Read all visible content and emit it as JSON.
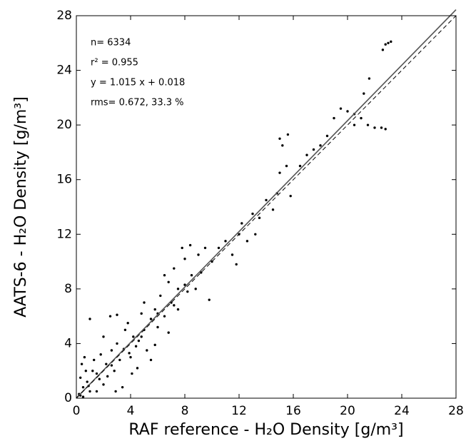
{
  "chart_data": {
    "type": "scatter",
    "x_label": "RAF reference - H₂O Density [g/m³]",
    "y_label": "AATS-6 - H₂O Density [g/m³]",
    "annotations": [
      "n= 6334",
      "r² = 0.955",
      "y = 1.015 x + 0.018",
      "rms= 0.672, 33.3 %"
    ],
    "xlim": [
      0,
      28
    ],
    "ylim": [
      0,
      28
    ],
    "xticks": [
      0,
      4,
      8,
      12,
      16,
      20,
      24,
      28
    ],
    "yticks": [
      0,
      4,
      8,
      12,
      16,
      20,
      24,
      28
    ],
    "color": "#000000",
    "x": [
      0.2,
      0.3,
      0.4,
      0.5,
      0.6,
      0.8,
      1.0,
      1.2,
      1.0,
      1.5,
      1.8,
      2.0,
      2.2,
      2.5,
      2.6,
      2.8,
      3.0,
      3.2,
      3.5,
      3.0,
      3.8,
      4.0,
      4.2,
      4.5,
      4.6,
      4.8,
      5.0,
      5.2,
      5.5,
      5.8,
      6.0,
      6.2,
      6.5,
      6.8,
      7.0,
      7.2,
      7.5,
      7.8,
      8.0,
      8.2,
      8.5,
      8.8,
      9.0,
      9.2,
      9.5,
      10.0,
      10.5,
      11.0,
      11.5,
      12.0,
      12.2,
      12.6,
      13.0,
      13.5,
      14.0,
      14.5,
      14.8,
      15.0,
      15.2,
      15.0,
      15.5,
      15.8,
      15.6,
      16.5,
      17.0,
      17.5,
      18.0,
      18.5,
      19.0,
      19.5,
      20.0,
      20.5,
      21.0,
      21.5,
      22.0,
      22.5,
      22.8,
      21.2,
      21.6,
      22.6,
      22.8,
      23.0,
      23.2,
      20.5,
      4.1,
      3.4,
      1.5,
      0.5,
      2.0,
      5.5,
      6.5,
      7.5,
      5.0,
      3.6,
      1.3,
      0.7,
      2.3,
      4.4,
      8.4,
      9.8,
      11.8,
      13.2,
      6.8,
      5.8,
      2.9,
      4.8,
      3.9,
      1.7,
      7.2,
      8.0,
      6.0,
      2.6,
      0.9,
      0.3
    ],
    "values": [
      0.3,
      1.5,
      2.5,
      0.8,
      3.0,
      1.2,
      5.8,
      2.0,
      0.5,
      1.8,
      3.2,
      1.0,
      2.5,
      6.0,
      3.5,
      2.0,
      4.0,
      2.8,
      3.6,
      6.1,
      5.5,
      3.0,
      4.5,
      2.2,
      4.2,
      6.2,
      5.0,
      3.5,
      5.8,
      6.5,
      5.2,
      7.5,
      6.0,
      8.5,
      7.0,
      9.5,
      6.5,
      11.0,
      10.2,
      7.8,
      9.0,
      8.0,
      10.5,
      9.2,
      11.0,
      10.0,
      11.0,
      11.5,
      10.5,
      12.0,
      12.8,
      11.5,
      13.5,
      13.2,
      14.5,
      13.8,
      15.0,
      16.5,
      18.5,
      19.0,
      17.0,
      14.8,
      19.3,
      17.0,
      17.8,
      18.2,
      18.5,
      19.2,
      20.5,
      21.2,
      21.0,
      20.8,
      20.5,
      20.0,
      19.8,
      19.8,
      19.7,
      22.3,
      23.4,
      25.5,
      25.9,
      26.0,
      26.1,
      20.0,
      1.8,
      0.8,
      0.5,
      0.1,
      4.5,
      2.8,
      9.0,
      8.0,
      7.0,
      5.0,
      2.8,
      2.0,
      1.6,
      3.8,
      11.2,
      7.2,
      9.8,
      12.0,
      4.8,
      3.9,
      0.5,
      4.5,
      3.3,
      1.4,
      6.8,
      8.3,
      6.2,
      2.4,
      0.9,
      0.2
    ],
    "lines": [
      {
        "x": [
          0,
          28
        ],
        "values": [
          0.018,
          28.438
        ],
        "color": "#555555",
        "style": "solid"
      },
      {
        "x": [
          0,
          28
        ],
        "values": [
          0,
          28
        ],
        "color": "#000000",
        "style": "dashed"
      }
    ]
  }
}
